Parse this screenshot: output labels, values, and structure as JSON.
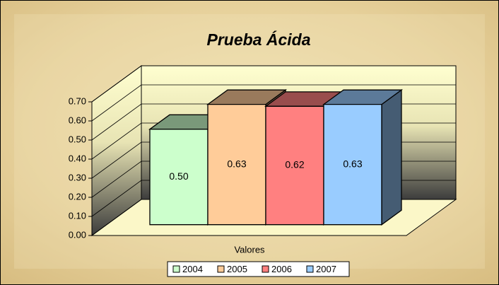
{
  "chart_data": {
    "type": "bar3d",
    "title": "Prueba Ácida",
    "x_label": "Valores",
    "categories": [
      "Valores"
    ],
    "series": [
      {
        "name": "2004",
        "color": "#ccffcc",
        "values": [
          0.5
        ],
        "value_labels": [
          "0.50"
        ]
      },
      {
        "name": "2005",
        "color": "#ffcc99",
        "values": [
          0.63
        ],
        "value_labels": [
          "0.63"
        ]
      },
      {
        "name": "2006",
        "color": "#ff8080",
        "values": [
          0.62
        ],
        "value_labels": [
          "0.62"
        ]
      },
      {
        "name": "2007",
        "color": "#99ccff",
        "values": [
          0.63
        ],
        "value_labels": [
          "0.63"
        ]
      }
    ],
    "ylim": [
      0,
      0.7
    ],
    "yticks": [
      {
        "value": 0,
        "label": "0.00"
      },
      {
        "value": 0.1,
        "label": "0.10"
      },
      {
        "value": 0.2,
        "label": "0.20"
      },
      {
        "value": 0.3,
        "label": "0.30"
      },
      {
        "value": 0.4,
        "label": "0.40"
      },
      {
        "value": 0.5,
        "label": "0.50"
      },
      {
        "value": 0.6,
        "label": "0.60"
      },
      {
        "value": 0.7,
        "label": "0.70"
      }
    ],
    "grid": true,
    "legend": "bottom"
  }
}
